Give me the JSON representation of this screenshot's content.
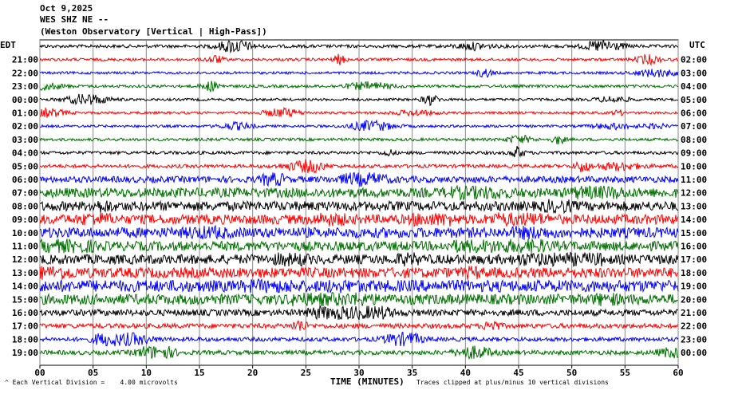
{
  "header": {
    "date": "Oct 9,2025",
    "station": "WES SHZ NE --",
    "description": "(Weston Observatory [Vertical | High-Pass])"
  },
  "left_axis_label": "EDT",
  "right_axis_label": "UTC",
  "footer": {
    "scale_note": "Each Vertical Division =    4.00 microvolts",
    "clip_note": "Traces clipped at plus/minus 10 vertical divisions",
    "corner_mark": "^"
  },
  "chart_data": {
    "type": "line",
    "title": "WES SHZ NE --",
    "xlabel": "TIME (MINUTES)",
    "ylabel": "",
    "xlim": [
      0,
      60
    ],
    "x_ticks": [
      "00",
      "05",
      "10",
      "15",
      "20",
      "25",
      "30",
      "35",
      "40",
      "45",
      "50",
      "55",
      "60"
    ],
    "grid": true,
    "line_colors": [
      "#000000",
      "#ff0000",
      "#0000ff",
      "#007000"
    ],
    "rows": [
      {
        "local": "",
        "utc": "",
        "amplitude": 2.0,
        "color": "#000000"
      },
      {
        "local": "21:00",
        "utc": "02:00",
        "amplitude": 1.8,
        "color": "#ff0000"
      },
      {
        "local": "22:00",
        "utc": "03:00",
        "amplitude": 1.6,
        "color": "#0000ff"
      },
      {
        "local": "23:00",
        "utc": "04:00",
        "amplitude": 1.8,
        "color": "#007000"
      },
      {
        "local": "00:00",
        "utc": "05:00",
        "amplitude": 1.6,
        "color": "#000000"
      },
      {
        "local": "01:00",
        "utc": "06:00",
        "amplitude": 1.6,
        "color": "#ff0000"
      },
      {
        "local": "02:00",
        "utc": "07:00",
        "amplitude": 1.6,
        "color": "#0000ff"
      },
      {
        "local": "03:00",
        "utc": "08:00",
        "amplitude": 1.8,
        "color": "#007000"
      },
      {
        "local": "04:00",
        "utc": "09:00",
        "amplitude": 2.0,
        "color": "#000000"
      },
      {
        "local": "05:00",
        "utc": "10:00",
        "amplitude": 2.2,
        "color": "#ff0000"
      },
      {
        "local": "06:00",
        "utc": "11:00",
        "amplitude": 4.0,
        "color": "#0000ff"
      },
      {
        "local": "07:00",
        "utc": "12:00",
        "amplitude": 6.0,
        "color": "#007000"
      },
      {
        "local": "08:00",
        "utc": "13:00",
        "amplitude": 6.0,
        "color": "#000000"
      },
      {
        "local": "09:00",
        "utc": "14:00",
        "amplitude": 6.0,
        "color": "#ff0000"
      },
      {
        "local": "10:00",
        "utc": "15:00",
        "amplitude": 6.5,
        "color": "#0000ff"
      },
      {
        "local": "11:00",
        "utc": "16:00",
        "amplitude": 6.0,
        "color": "#007000"
      },
      {
        "local": "12:00",
        "utc": "17:00",
        "amplitude": 6.0,
        "color": "#000000"
      },
      {
        "local": "13:00",
        "utc": "18:00",
        "amplitude": 6.5,
        "color": "#ff0000"
      },
      {
        "local": "14:00",
        "utc": "19:00",
        "amplitude": 7.5,
        "color": "#0000ff"
      },
      {
        "local": "15:00",
        "utc": "20:00",
        "amplitude": 6.5,
        "color": "#007000"
      },
      {
        "local": "16:00",
        "utc": "21:00",
        "amplitude": 4.0,
        "color": "#000000"
      },
      {
        "local": "17:00",
        "utc": "22:00",
        "amplitude": 3.0,
        "color": "#ff0000"
      },
      {
        "local": "18:00",
        "utc": "23:00",
        "amplitude": 2.6,
        "color": "#0000ff"
      },
      {
        "local": "19:00",
        "utc": "00:00",
        "amplitude": 2.8,
        "color": "#007000"
      }
    ]
  }
}
